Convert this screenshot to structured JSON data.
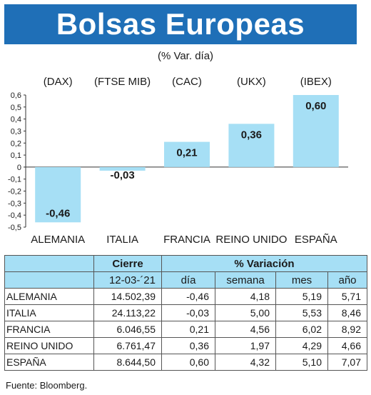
{
  "title": "Bolsas Europeas",
  "subtitle": "(% Var. día)",
  "source": "Fuente: Bloomberg.",
  "colors": {
    "title_bg": "#1f6fb7",
    "bar": "#a6dff5",
    "header_bg": "#a6dff5"
  },
  "chart_data": {
    "type": "bar",
    "categories": [
      "ALEMANIA",
      "ITALIA",
      "FRANCIA",
      "REINO UNIDO",
      "ESPAÑA"
    ],
    "index_names": [
      "(DAX)",
      "(FTSE MIB)",
      "(CAC)",
      "(UKX)",
      "(IBEX)"
    ],
    "values": [
      -0.46,
      -0.03,
      0.21,
      0.36,
      0.6
    ],
    "value_labels": [
      "-0,46",
      "-0,03",
      "0,21",
      "0,36",
      "0,60"
    ],
    "ylim": [
      -0.5,
      0.6
    ],
    "yticks": [
      "0,6",
      "0,5",
      "0,4",
      "0,3",
      "0,2",
      "0,1",
      "0",
      "-0,1",
      "-0,2",
      "-0,3",
      "-0,4",
      "-0,5"
    ],
    "grid": false
  },
  "table": {
    "header_cierre": "Cierre",
    "header_variacion": "% Variación",
    "date": "12-03-´21",
    "columns": [
      "día",
      "semana",
      "mes",
      "año"
    ],
    "rows": [
      {
        "name": "ALEMANIA",
        "cierre": "14.502,39",
        "dia": "-0,46",
        "semana": "4,18",
        "mes": "5,19",
        "ano": "5,71"
      },
      {
        "name": "ITALIA",
        "cierre": "24.113,22",
        "dia": "-0,03",
        "semana": "5,00",
        "mes": "5,53",
        "ano": "8,46"
      },
      {
        "name": "FRANCIA",
        "cierre": "6.046,55",
        "dia": "0,21",
        "semana": "4,56",
        "mes": "6,02",
        "ano": "8,92"
      },
      {
        "name": "REINO UNIDO",
        "cierre": "6.761,47",
        "dia": "0,36",
        "semana": "1,97",
        "mes": "4,29",
        "ano": "4,66"
      },
      {
        "name": "ESPAÑA",
        "cierre": "8.644,50",
        "dia": "0,60",
        "semana": "4,32",
        "mes": "5,10",
        "ano": "7,07"
      }
    ]
  }
}
